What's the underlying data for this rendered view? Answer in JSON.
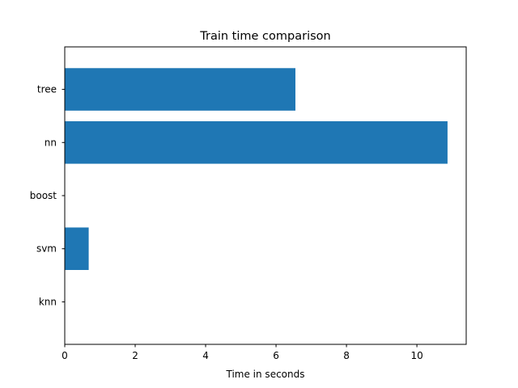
{
  "chart_data": {
    "type": "bar",
    "orientation": "horizontal",
    "title": "Train time comparison",
    "xlabel": "Time in seconds",
    "ylabel": "",
    "categories": [
      "knn",
      "svm",
      "boost",
      "nn",
      "tree"
    ],
    "values": [
      0.0,
      0.68,
      0.0,
      10.87,
      6.55
    ],
    "xlim": [
      0,
      11.4
    ],
    "xticks": [
      0,
      2,
      4,
      6,
      8,
      10
    ],
    "grid": false,
    "legend": "none",
    "bar_color": "#1f77b4"
  }
}
